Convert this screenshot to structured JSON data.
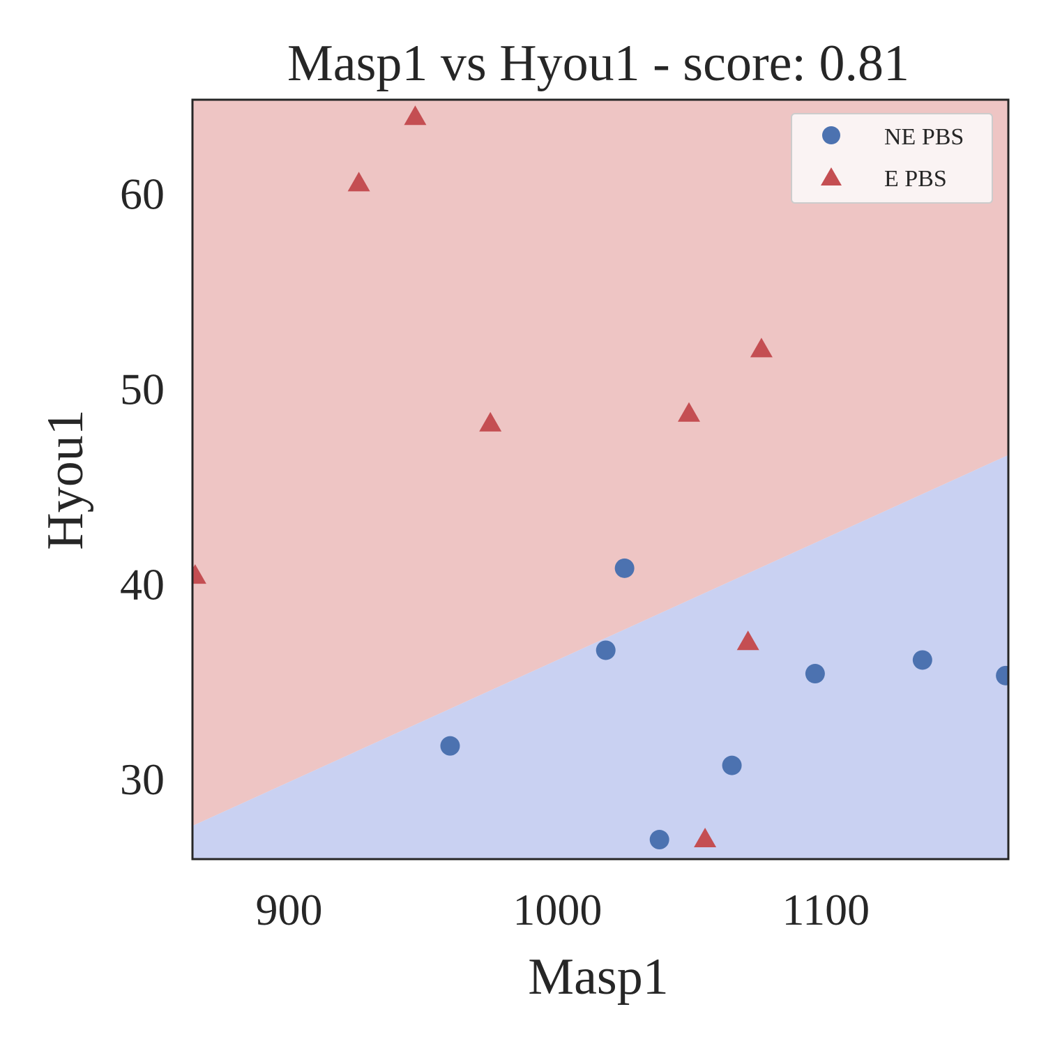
{
  "chart_data": {
    "type": "scatter",
    "title": "Masp1 vs Hyou1 - score: 0.81",
    "xlabel": "Masp1",
    "ylabel": "Hyou1",
    "xlim": [
      864,
      1168
    ],
    "ylim": [
      25.9,
      64.8
    ],
    "xticks": [
      900,
      1000,
      1100
    ],
    "yticks": [
      30,
      40,
      50,
      60
    ],
    "grid": false,
    "legend_position": "top-right",
    "decision_boundary": {
      "x": [
        864,
        1168
      ],
      "y": [
        27.6,
        46.6
      ]
    },
    "regions": {
      "above": "#eec5c4",
      "below": "#c9d1f2"
    },
    "series": [
      {
        "name": "NE PBS",
        "marker": "circle",
        "color": "#4c72b0",
        "points": [
          [
            960,
            31.7
          ],
          [
            1018,
            36.6
          ],
          [
            1025,
            40.8
          ],
          [
            1038,
            26.9
          ],
          [
            1065,
            30.7
          ],
          [
            1096,
            35.4
          ],
          [
            1136,
            36.1
          ],
          [
            1167,
            35.3
          ]
        ]
      },
      {
        "name": "E PBS",
        "marker": "triangle",
        "color": "#c44e52",
        "points": [
          [
            865,
            40.4
          ],
          [
            926,
            60.5
          ],
          [
            947,
            63.9
          ],
          [
            975,
            48.2
          ],
          [
            1049,
            48.7
          ],
          [
            1055,
            26.9
          ],
          [
            1071,
            37.0
          ],
          [
            1076,
            52.0
          ]
        ]
      }
    ]
  }
}
